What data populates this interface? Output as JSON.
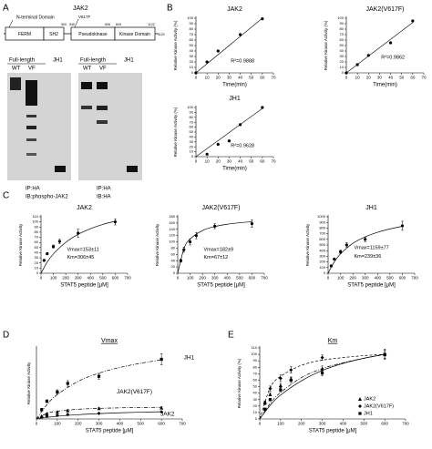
{
  "panel_labels": [
    "A",
    "B",
    "C",
    "D",
    "E"
  ],
  "panel_a": {
    "protein": "JAK2",
    "n_terminal": "N-terminal Domain",
    "mutation": "V617F",
    "domains": [
      "FERM",
      "SH2",
      "Pseudokinase",
      "Kinase Domain"
    ],
    "positions": [
      "500",
      "545",
      "606",
      "849",
      "1122",
      "1129"
    ],
    "blots": [
      {
        "constructs": [
          "Full-length",
          "JH1"
        ],
        "lanes": [
          "WT",
          "VF"
        ],
        "ip": "IP:HA",
        "ib": "IB:phospho-JAK2"
      },
      {
        "constructs": [
          "Full-length",
          "JH1"
        ],
        "lanes": [
          "WT",
          "VF"
        ],
        "ip": "IP:HA",
        "ib": "IB:HA"
      }
    ]
  },
  "chart_data": [
    {
      "type": "scatter",
      "title": "JAK2",
      "xlabel": "Time(min)",
      "ylabel": "Relative Kinase Activity (%)",
      "xlim": [
        0,
        70
      ],
      "xticks": [
        0,
        10,
        20,
        30,
        40,
        50,
        60,
        70
      ],
      "ylim": [
        0,
        100
      ],
      "yticks": [
        0,
        10,
        20,
        30,
        40,
        50,
        60,
        70,
        80,
        90,
        100
      ],
      "series": [
        {
          "color": "#000000",
          "marker": "circle",
          "x": [
            0,
            10,
            20,
            40,
            60
          ],
          "values": [
            0,
            20,
            40,
            70,
            99
          ]
        }
      ],
      "fit": {
        "x": [
          0,
          60
        ],
        "values": [
          0,
          100
        ]
      },
      "annotations": [
        "R²=0.9888"
      ]
    },
    {
      "type": "scatter",
      "title": "JAK2(V617F)",
      "xlabel": "Time(min)",
      "ylabel": "Relative Kinase Activity (%)",
      "xlim": [
        0,
        70
      ],
      "xticks": [
        0,
        10,
        20,
        30,
        40,
        50,
        60,
        70
      ],
      "ylim": [
        0,
        100
      ],
      "yticks": [
        0,
        10,
        20,
        30,
        40,
        50,
        60,
        70,
        80,
        90,
        100
      ],
      "series": [
        {
          "color": "#000000",
          "marker": "circle",
          "x": [
            0,
            10,
            20,
            40,
            60
          ],
          "values": [
            0,
            15,
            32,
            55,
            95
          ]
        }
      ],
      "fit": {
        "x": [
          0,
          60
        ],
        "values": [
          0,
          92
        ]
      },
      "annotations": [
        "R²=0.9862"
      ]
    },
    {
      "type": "scatter",
      "title": "JH1",
      "xlabel": "Time(min)",
      "ylabel": "Relative Kinase Activity (%)",
      "xlim": [
        0,
        70
      ],
      "xticks": [
        0,
        10,
        20,
        30,
        40,
        50,
        60,
        70
      ],
      "ylim": [
        0,
        100
      ],
      "yticks": [
        0,
        10,
        20,
        30,
        40,
        50,
        60,
        70,
        80,
        90,
        100
      ],
      "series": [
        {
          "color": "#000000",
          "marker": "circle",
          "x": [
            10,
            20,
            30,
            40,
            60
          ],
          "values": [
            5,
            25,
            32,
            65,
            100
          ]
        }
      ],
      "fit": {
        "x": [
          0,
          60
        ],
        "values": [
          0,
          98
        ]
      },
      "annotations": [
        "R²=0.9628"
      ]
    },
    {
      "type": "scatter",
      "title": "JAK2",
      "xlabel": "STAT5 peptide [μM]",
      "ylabel": "Relative Kinase Activity",
      "xlim": [
        0,
        700
      ],
      "xticks": [
        0,
        100,
        200,
        300,
        400,
        500,
        600,
        700
      ],
      "ylim": [
        0,
        110
      ],
      "yticks": [
        0,
        10,
        20,
        30,
        40,
        50,
        60,
        70,
        80,
        90,
        100,
        110
      ],
      "series": [
        {
          "color": "#000000",
          "marker": "circle",
          "line_style": "solid",
          "x": [
            25,
            50,
            100,
            150,
            300,
            600
          ],
          "values": [
            25,
            38,
            52,
            62,
            78,
            100
          ],
          "errors": [
            2,
            2,
            3,
            4,
            8,
            6
          ],
          "curve": {
            "x": [
              0,
              50,
              100,
              200,
              300,
              400,
              500,
              600
            ],
            "values": [
              0,
              21.6,
              37.6,
              60.1,
              75.7,
              86.8,
              95.1,
              101.4
            ]
          }
        }
      ],
      "annotations": [
        "Vmax=153±11",
        "Km=306±45"
      ]
    },
    {
      "type": "scatter",
      "title": "JAK2(V617F)",
      "xlabel": "STAT5 peptide [μM]",
      "ylabel": "Relative Kinase Activity",
      "xlim": [
        0,
        700
      ],
      "xticks": [
        0,
        100,
        200,
        300,
        400,
        500,
        600,
        700
      ],
      "ylim": [
        0,
        180
      ],
      "yticks": [
        0,
        20,
        40,
        60,
        80,
        100,
        120,
        140,
        160,
        180
      ],
      "series": [
        {
          "color": "#000000",
          "marker": "circle",
          "line_style": "solid",
          "x": [
            25,
            50,
            100,
            150,
            300,
            600
          ],
          "values": [
            40,
            75,
            100,
            120,
            150,
            158
          ],
          "errors": [
            5,
            8,
            10,
            10,
            8,
            12
          ],
          "curve": {
            "x": [
              0,
              50,
              100,
              200,
              300,
              400,
              500,
              600
            ],
            "values": [
              0,
              78,
              109,
              136,
              149,
              156,
              161,
              164
            ]
          }
        }
      ],
      "annotations": [
        "Vmax=182±9",
        "Km=67±12"
      ]
    },
    {
      "type": "scatter",
      "title": "JH1",
      "xlabel": "STAT5 peptide [μM]",
      "ylabel": "Relative Kinase Activity",
      "xlim": [
        0,
        700
      ],
      "xticks": [
        0,
        100,
        200,
        300,
        400,
        500,
        600,
        700
      ],
      "ylim": [
        0,
        1000
      ],
      "yticks": [
        0,
        100,
        200,
        300,
        400,
        500,
        600,
        700,
        800,
        900,
        1000
      ],
      "series": [
        {
          "color": "#000000",
          "marker": "circle",
          "line_style": "solid",
          "x": [
            25,
            50,
            100,
            150,
            300,
            600
          ],
          "values": [
            130,
            250,
            380,
            500,
            600,
            840
          ],
          "errors": [
            20,
            20,
            30,
            40,
            40,
            80
          ],
          "curve": {
            "x": [
              0,
              50,
              100,
              200,
              300,
              400,
              500,
              600
            ],
            "values": [
              0,
              200,
              342,
              529,
              645,
              725,
              784,
              832
            ]
          }
        }
      ],
      "annotations": [
        "Vmax=1159±77",
        "Km=239±36"
      ]
    },
    {
      "type": "scatter",
      "title": "Vmax",
      "xlabel": "STAT5 peptide [μM]",
      "ylabel": "Relative Kinase Activity",
      "xlim": [
        0,
        700
      ],
      "xticks": [
        0,
        100,
        200,
        300,
        400,
        500,
        600,
        700
      ],
      "ylim": [
        0,
        1000
      ],
      "legend": "inline",
      "series": [
        {
          "name": "JH1",
          "color": "#000000",
          "marker": "square",
          "line_style": "dashdot",
          "x": [
            25,
            50,
            100,
            150,
            300,
            600
          ],
          "values": [
            130,
            250,
            380,
            500,
            600,
            840
          ],
          "errors": [
            20,
            20,
            30,
            40,
            40,
            80
          ],
          "curve": {
            "x": [
              0,
              50,
              100,
              200,
              300,
              400,
              500,
              600
            ],
            "values": [
              0,
              200,
              342,
              529,
              645,
              725,
              784,
              832
            ]
          }
        },
        {
          "name": "JAK2(V617F)",
          "color": "#000000",
          "marker": "triangle",
          "line_style": "dashdot",
          "x": [
            25,
            50,
            100,
            150,
            300,
            600
          ],
          "values": [
            40,
            75,
            100,
            120,
            150,
            158
          ],
          "errors": [
            5,
            8,
            10,
            10,
            8,
            12
          ],
          "curve": {
            "x": [
              0,
              50,
              100,
              200,
              300,
              400,
              500,
              600
            ],
            "values": [
              0,
              78,
              109,
              136,
              149,
              156,
              161,
              164
            ]
          }
        },
        {
          "name": "JAK2",
          "color": "#000000",
          "marker": "diamond",
          "line_style": "solid",
          "x": [
            25,
            50,
            100,
            150,
            300,
            600
          ],
          "values": [
            25,
            38,
            52,
            62,
            78,
            100
          ],
          "errors": [
            2,
            2,
            3,
            4,
            8,
            6
          ],
          "curve": {
            "x": [
              0,
              50,
              100,
              200,
              300,
              400,
              500,
              600
            ],
            "values": [
              0,
              21.6,
              37.6,
              60.1,
              75.7,
              86.8,
              95.1,
              101.4
            ]
          }
        }
      ]
    },
    {
      "type": "scatter",
      "title": "Km",
      "xlabel": "STAT5 peptide [μM]",
      "ylabel": "Relative Kinase Activity (%)",
      "xlim": [
        0,
        700
      ],
      "xticks": [
        0,
        100,
        200,
        300,
        400,
        500,
        600,
        700
      ],
      "ylim": [
        0,
        110
      ],
      "yticks": [
        0,
        10,
        20,
        30,
        40,
        50,
        60,
        70,
        80,
        90,
        100,
        110
      ],
      "legend": "lower right",
      "series": [
        {
          "name": "JAK2",
          "color": "#000000",
          "marker": "triangle",
          "line_style": "solid",
          "x": [
            25,
            50,
            100,
            150,
            300,
            600
          ],
          "values": [
            25,
            38,
            52,
            62,
            78,
            100
          ],
          "errors": [
            2,
            2,
            3,
            3,
            4,
            6
          ],
          "curve": {
            "x": [
              0,
              50,
              100,
              200,
              300,
              400,
              500,
              600
            ],
            "values": [
              0,
              21,
              37,
              59,
              75,
              86,
              94,
              100
            ]
          }
        },
        {
          "name": "JAK2(V617F)",
          "color": "#000000",
          "marker": "diamond",
          "line_style": "dashed",
          "x": [
            25,
            50,
            100,
            150,
            300,
            600
          ],
          "values": [
            25,
            47,
            63,
            76,
            95,
            100
          ],
          "errors": [
            3,
            4,
            5,
            5,
            4,
            6
          ],
          "curve": {
            "x": [
              0,
              50,
              100,
              200,
              300,
              400,
              500,
              600
            ],
            "values": [
              0,
              48,
              66,
              83,
              91,
              95,
              98,
              100
            ]
          }
        },
        {
          "name": "JH1",
          "color": "#000000",
          "marker": "square",
          "line_style": "dashdot",
          "x": [
            25,
            50,
            100,
            150,
            300,
            600
          ],
          "values": [
            15,
            30,
            45,
            60,
            71,
            100
          ],
          "errors": [
            2,
            2,
            3,
            4,
            4,
            8
          ],
          "curve": {
            "x": [
              0,
              50,
              100,
              200,
              300,
              400,
              500,
              600
            ],
            "values": [
              0,
              24,
              41,
              64,
              78,
              87,
              94,
              100
            ]
          }
        }
      ]
    }
  ]
}
